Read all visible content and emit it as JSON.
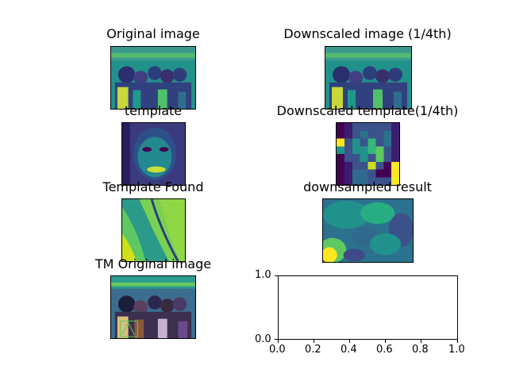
{
  "figure": {
    "panels": [
      {
        "title": "Original image"
      },
      {
        "title": "Downscaled image (1/4th)"
      },
      {
        "title": "template"
      },
      {
        "title": "Downscaled template(1/4th)"
      },
      {
        "title": "Template Found"
      },
      {
        "title": "downsampled result"
      },
      {
        "title": "TM Original image"
      }
    ],
    "empty_axes": {
      "x_ticks": [
        "0.0",
        "0.2",
        "0.4",
        "0.6",
        "0.8",
        "1.0"
      ],
      "y_ticks": [
        "0.0",
        "1.0"
      ]
    }
  },
  "colors": {
    "viridis_dark": "#440154",
    "viridis_blue": "#3b528b",
    "viridis_teal": "#21918c",
    "viridis_green": "#5ec962",
    "viridis_yellow": "#fde725"
  }
}
